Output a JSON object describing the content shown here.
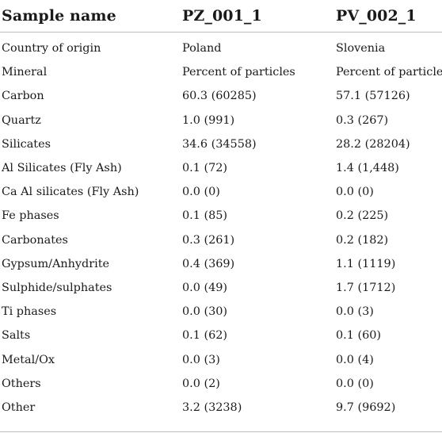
{
  "table": {
    "headers": [
      "Sample name",
      "PZ_001_1",
      "PV_002_1"
    ],
    "rows": [
      [
        "Country of origin",
        "Poland",
        "Slovenia"
      ],
      [
        "Mineral",
        "Percent of particles",
        "Percent of particles"
      ],
      [
        "Carbon",
        "60.3 (60285)",
        "57.1 (57126)"
      ],
      [
        "Quartz",
        "1.0 (991)",
        "0.3 (267)"
      ],
      [
        "Silicates",
        "34.6 (34558)",
        "28.2 (28204)"
      ],
      [
        "Al Silicates (Fly Ash)",
        "0.1 (72)",
        "1.4 (1,448)"
      ],
      [
        "Ca Al silicates (Fly Ash)",
        "0.0 (0)",
        "0.0 (0)"
      ],
      [
        "Fe phases",
        "0.1 (85)",
        "0.2 (225)"
      ],
      [
        "Carbonates",
        "0.3 (261)",
        "0.2 (182)"
      ],
      [
        "Gypsum/Anhydrite",
        "0.4 (369)",
        "1.1 (1119)"
      ],
      [
        "Sulphide/sulphates",
        "0.0 (49)",
        "1.7 (1712)"
      ],
      [
        "Ti phases",
        "0.0 (30)",
        "0.0 (3)"
      ],
      [
        "Salts",
        "0.1 (62)",
        "0.1 (60)"
      ],
      [
        "Metal/Ox",
        "0.0 (3)",
        "0.0 (4)"
      ],
      [
        "Others",
        "0.0 (2)",
        "0.0 (0)"
      ],
      [
        "Other",
        "3.2 (3238)",
        "9.7 (9692)"
      ]
    ]
  }
}
